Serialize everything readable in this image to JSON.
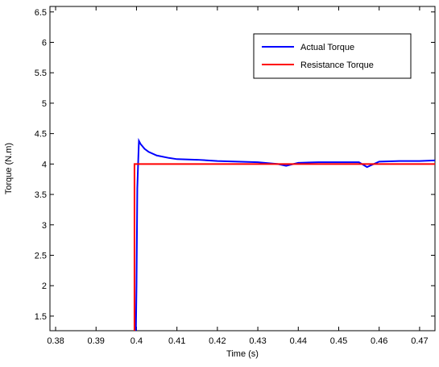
{
  "chart_data": {
    "type": "line",
    "xlabel": "Time (s)",
    "ylabel": "Torque (N.m)",
    "xlim": [
      0.3786,
      0.4738
    ],
    "ylim": [
      1.26,
      6.59
    ],
    "xticks": [
      0.38,
      0.39,
      0.4,
      0.41,
      0.42,
      0.43,
      0.44,
      0.45,
      0.46,
      0.47
    ],
    "yticks": [
      1.5,
      2,
      2.5,
      3,
      3.5,
      4,
      4.5,
      5,
      5.5,
      6,
      6.5
    ],
    "legend": "upper right",
    "series": [
      {
        "name": "Actual Torque",
        "color": "#0000ff",
        "x": [
          0.3786,
          0.3998,
          0.4,
          0.4002,
          0.4004,
          0.4006,
          0.401,
          0.402,
          0.403,
          0.405,
          0.408,
          0.41,
          0.415,
          0.42,
          0.425,
          0.43,
          0.435,
          0.437,
          0.44,
          0.445,
          0.45,
          0.455,
          0.457,
          0.46,
          0.465,
          0.47,
          0.4738
        ],
        "values": [
          1,
          1,
          2,
          3.6,
          4.0,
          4.38,
          4.33,
          4.25,
          4.2,
          4.14,
          4.1,
          4.08,
          4.07,
          4.05,
          4.04,
          4.03,
          4.0,
          3.97,
          4.02,
          4.03,
          4.03,
          4.03,
          3.95,
          4.04,
          4.05,
          4.05,
          4.06
        ]
      },
      {
        "name": "Resistance Torque",
        "color": "#ff0000",
        "x": [
          0.3786,
          0.3995,
          0.3995,
          0.4738
        ],
        "values": [
          1,
          1,
          4,
          4
        ]
      }
    ]
  }
}
